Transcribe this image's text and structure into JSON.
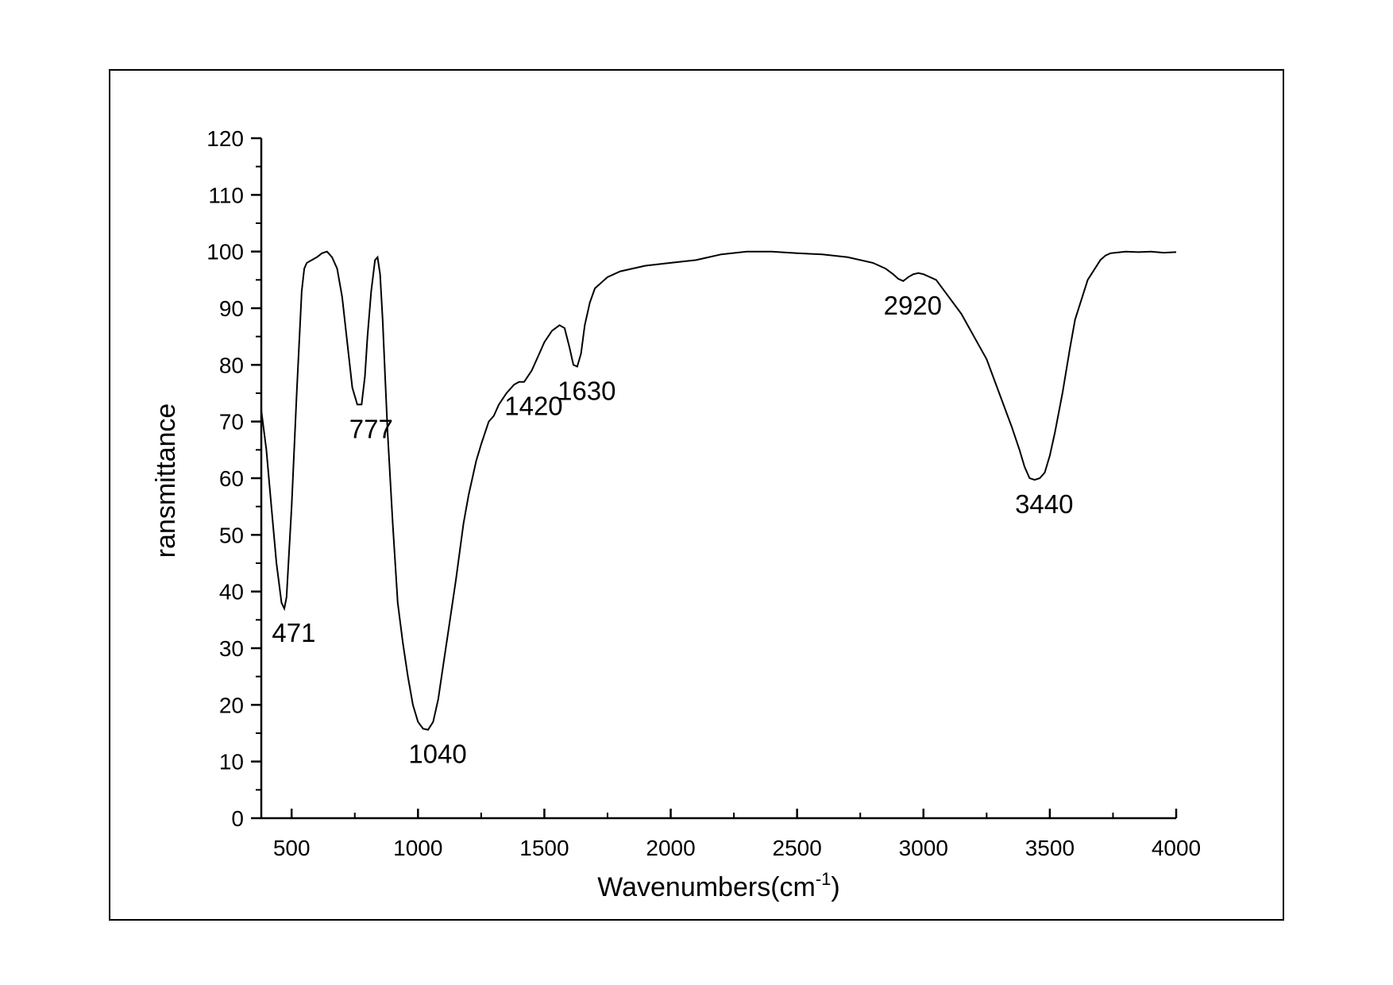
{
  "chart_data": {
    "type": "line",
    "title": "",
    "xlabel": "Wavenumbers(cm",
    "xlabel_superscript": "-1",
    "xlabel_suffix": ")",
    "ylabel": "ransmittance",
    "xlim": [
      380,
      4000
    ],
    "ylim": [
      0,
      120
    ],
    "xticks": [
      500,
      1000,
      1500,
      2000,
      2500,
      3000,
      3500,
      4000
    ],
    "yticks": [
      0,
      10,
      20,
      30,
      40,
      50,
      60,
      70,
      80,
      90,
      100,
      110,
      120
    ],
    "grid": false,
    "line_color": "#000000",
    "series": [
      {
        "x": [
          380,
          400,
          420,
          440,
          460,
          471,
          480,
          500,
          520,
          540,
          550,
          560,
          580,
          600,
          620,
          640,
          660,
          680,
          700,
          720,
          740,
          760,
          777,
          790,
          800,
          815,
          830,
          840,
          850,
          860,
          870,
          880,
          900,
          920,
          940,
          960,
          980,
          1000,
          1020,
          1040,
          1060,
          1080,
          1100,
          1120,
          1150,
          1180,
          1200,
          1230,
          1250,
          1280,
          1300,
          1320,
          1350,
          1380,
          1400,
          1420,
          1450,
          1480,
          1500,
          1530,
          1560,
          1580,
          1600,
          1615,
          1630,
          1645,
          1660,
          1680,
          1700,
          1750,
          1800,
          1900,
          2000,
          2100,
          2200,
          2300,
          2400,
          2500,
          2600,
          2700,
          2800,
          2850,
          2880,
          2900,
          2920,
          2940,
          2960,
          2980,
          3000,
          3050,
          3100,
          3150,
          3200,
          3250,
          3300,
          3350,
          3380,
          3400,
          3420,
          3440,
          3460,
          3480,
          3500,
          3520,
          3550,
          3580,
          3600,
          3650,
          3700,
          3720,
          3740,
          3760,
          3800,
          3850,
          3900,
          3950,
          4000
        ],
        "y": [
          72,
          65,
          55,
          45,
          38,
          37,
          39,
          55,
          75,
          93,
          97,
          98,
          98.5,
          99,
          99.7,
          100,
          99,
          97,
          92,
          84,
          76,
          73,
          73,
          78,
          85,
          93,
          98.5,
          99,
          96,
          88,
          78,
          68,
          52,
          38,
          31,
          25,
          20,
          17,
          15.8,
          15.6,
          17,
          21,
          27,
          33,
          42,
          52,
          57,
          63,
          66,
          70,
          71,
          73,
          75,
          76.5,
          77,
          77,
          79,
          82,
          84,
          86,
          87,
          86.5,
          83,
          80,
          79.7,
          82,
          87,
          91,
          93.5,
          95.5,
          96.5,
          97.5,
          98,
          98.5,
          99.5,
          100,
          100,
          99.7,
          99.5,
          99,
          98,
          97,
          96,
          95.2,
          94.8,
          95.5,
          96,
          96.2,
          96,
          95,
          92,
          89,
          85,
          81,
          75,
          69,
          65,
          62,
          60,
          59.7,
          60,
          61,
          64,
          68,
          75,
          83,
          88,
          95,
          98.5,
          99.3,
          99.7,
          99.8,
          100,
          99.9,
          100,
          99.8,
          99.9
        ]
      }
    ],
    "annotations": [
      {
        "label": "471",
        "x": 471,
        "y": 37
      },
      {
        "label": "777",
        "x": 777,
        "y": 73
      },
      {
        "label": "1040",
        "x": 1040,
        "y": 15.6
      },
      {
        "label": "1420",
        "x": 1420,
        "y": 77
      },
      {
        "label": "1630",
        "x": 1630,
        "y": 79.7
      },
      {
        "label": "2920",
        "x": 2920,
        "y": 94.8
      },
      {
        "label": "3440",
        "x": 3440,
        "y": 59.7
      }
    ]
  }
}
